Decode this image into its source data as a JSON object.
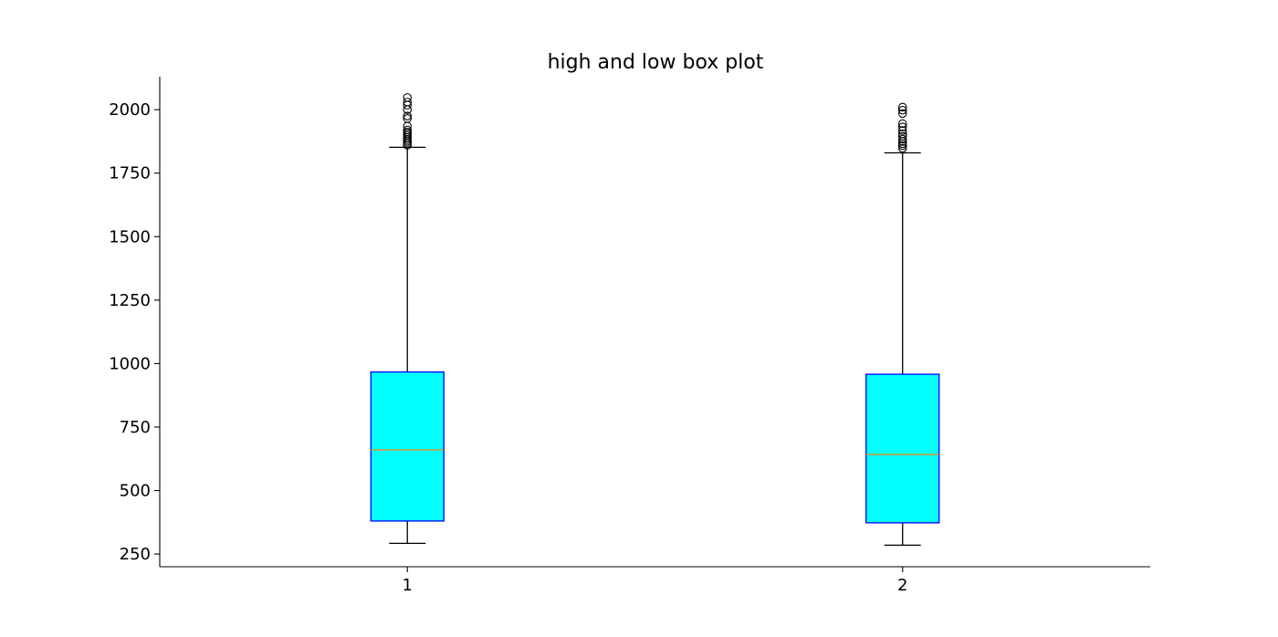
{
  "chart_data": {
    "type": "box",
    "title": "high and low box plot",
    "xlabel": "",
    "ylabel": "",
    "categories": [
      "1",
      "2"
    ],
    "ylim": [
      200,
      2130
    ],
    "yticks": [
      250,
      500,
      750,
      1000,
      1250,
      1500,
      1750,
      2000
    ],
    "ytick_labels": [
      "250",
      "500",
      "750",
      "1000",
      "1250",
      "1500",
      "1750",
      "2000"
    ],
    "grid": false,
    "colors": {
      "box_fill": "#00ffff",
      "box_edge": "#0000ff",
      "median": "#ff7f0e",
      "whisker": "#000000"
    },
    "boxes": [
      {
        "label": "1",
        "whislo": 292,
        "q1": 380,
        "med": 660,
        "q3": 967,
        "whishi": 1852,
        "fliers": [
          1860,
          1868,
          1875,
          1882,
          1890,
          1898,
          1905,
          1912,
          1920,
          1935,
          1965,
          1975,
          2000,
          2018,
          2030,
          2048
        ]
      },
      {
        "label": "2",
        "whislo": 285,
        "q1": 373,
        "med": 642,
        "q3": 958,
        "whishi": 1830,
        "fliers": [
          1848,
          1858,
          1866,
          1875,
          1884,
          1895,
          1905,
          1918,
          1932,
          1945,
          1985,
          1998,
          2010
        ]
      }
    ]
  }
}
